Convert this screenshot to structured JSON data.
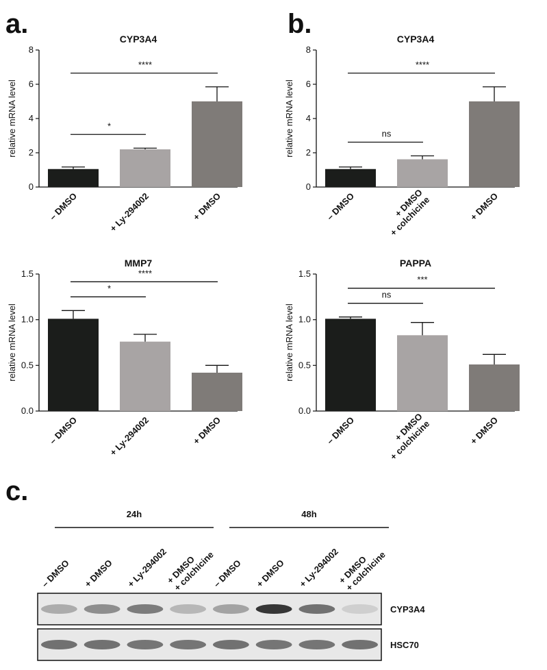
{
  "panel_labels": [
    "a.",
    "b.",
    "c."
  ],
  "chart_data": [
    {
      "type": "bar",
      "title": "CYP3A4",
      "y_label": "relative mRNA level",
      "categories": [
        "– DMSO",
        "+ Ly-294002",
        "+ DMSO"
      ],
      "values": [
        1.05,
        2.2,
        5.0
      ],
      "errors": [
        0.12,
        0.07,
        0.85
      ],
      "colors": [
        "#1b1d1b",
        "#a8a4a4",
        "#7f7b78"
      ],
      "ylim": [
        0,
        8
      ],
      "yticks": [
        0,
        2,
        4,
        6,
        8
      ],
      "comparisons": [
        {
          "label": "*",
          "from": 0,
          "to": 1
        },
        {
          "label": "****",
          "from": 0,
          "to": 2
        }
      ]
    },
    {
      "type": "bar",
      "title": "CYP3A4",
      "y_label": "relative mRNA level",
      "categories": [
        "– DMSO",
        "+ DMSO\n+ colchicine",
        "+ DMSO"
      ],
      "values": [
        1.05,
        1.62,
        5.0
      ],
      "errors": [
        0.12,
        0.2,
        0.85
      ],
      "colors": [
        "#1b1d1b",
        "#a8a4a4",
        "#7f7b78"
      ],
      "ylim": [
        0,
        8
      ],
      "yticks": [
        0,
        2,
        4,
        6,
        8
      ],
      "comparisons": [
        {
          "label": "ns",
          "from": 0,
          "to": 1
        },
        {
          "label": "****",
          "from": 0,
          "to": 2
        }
      ]
    },
    {
      "type": "bar",
      "title": "MMP7",
      "y_label": "relative mRNA level",
      "categories": [
        "– DMSO",
        "+ Ly-294002",
        "+ DMSO"
      ],
      "values": [
        1.01,
        0.76,
        0.42
      ],
      "errors": [
        0.09,
        0.08,
        0.08
      ],
      "colors": [
        "#1b1d1b",
        "#a8a4a4",
        "#7f7b78"
      ],
      "ylim": [
        0,
        1.5
      ],
      "yticks": [
        {
          "value": 0,
          "label": "0.0"
        },
        0.5,
        {
          "value": 1,
          "label": "1.0"
        },
        1.5
      ],
      "comparisons": [
        {
          "label": "*",
          "from": 0,
          "to": 1
        },
        {
          "label": "****",
          "from": 0,
          "to": 2
        }
      ]
    },
    {
      "type": "bar",
      "title": "PAPPA",
      "y_label": "relative mRNA level",
      "categories": [
        "– DMSO",
        "+ DMSO\n+ colchicine",
        "+ DMSO"
      ],
      "values": [
        1.01,
        0.83,
        0.51
      ],
      "errors": [
        0.02,
        0.14,
        0.11
      ],
      "colors": [
        "#1b1d1b",
        "#a8a4a4",
        "#7f7b78"
      ],
      "ylim": [
        0,
        1.5
      ],
      "yticks": [
        {
          "value": 0,
          "label": "0.0"
        },
        0.5,
        {
          "value": 1,
          "label": "1.0"
        },
        1.5
      ],
      "comparisons": [
        {
          "label": "ns",
          "from": 0,
          "to": 1
        },
        {
          "label": "***",
          "from": 0,
          "to": 2
        }
      ]
    }
  ],
  "blot": {
    "groups": [
      "24h",
      "48h"
    ],
    "lanes": [
      "– DMSO",
      "+ DMSO",
      "+ Ly-294002",
      "+ DMSO\n+ colchicine",
      "– DMSO",
      "+ DMSO",
      "+ Ly-294002",
      "+ DMSO\n+ colchicine"
    ],
    "rows": [
      {
        "name": "CYP3A4",
        "bands": [
          0.3,
          0.45,
          0.55,
          0.25,
          0.35,
          0.9,
          0.6,
          0.12
        ]
      },
      {
        "name": "HSC70",
        "bands": [
          0.6,
          0.6,
          0.58,
          0.58,
          0.6,
          0.58,
          0.58,
          0.6
        ]
      }
    ]
  }
}
